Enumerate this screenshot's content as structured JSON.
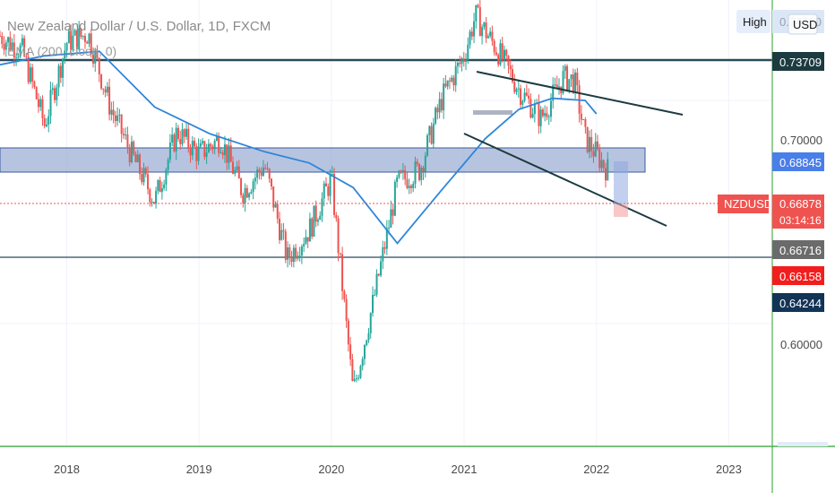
{
  "header": {
    "title": "New Zealand Dollar / U.S. Dollar, 1D, FXCM",
    "indicator": "EMA (200, close, 0)",
    "high_button": "High",
    "currency_button": "USD",
    "high_value": "0.74630"
  },
  "colors": {
    "up": "#26a69a",
    "down": "#ef5350",
    "ema": "#2f86d8",
    "trendline": "#1c3b40",
    "level": "#2b4a5a",
    "zone": "#7b93c7",
    "current_price": "#ef5350",
    "price_axis_sep": "#4caf50"
  },
  "price_tags": {
    "level_top": "0.73709",
    "zone": "0.68845",
    "symbol": "NZDUSD",
    "current": "0.66878",
    "countdown": "03:14:16",
    "level_mid": "0.66716",
    "red": "0.66158",
    "navy": "0.64244"
  },
  "chart_data": {
    "type": "candlestick",
    "title": "New Zealand Dollar / U.S. Dollar, 1D, FXCM",
    "symbol": "NZDUSD",
    "x_ticks": [
      "2018",
      "2019",
      "2020",
      "2021",
      "2022",
      "2023"
    ],
    "y_ticks": [
      "0.70000",
      "0.60000"
    ],
    "y_range": [
      0.545,
      0.745
    ],
    "x_range": [
      "2017-07-01",
      "2023-05-01"
    ],
    "current_price": 0.66878,
    "series": [
      {
        "name": "NZDUSD",
        "points": [
          [
            "2017-07",
            0.729
          ],
          [
            "2017-09",
            0.722
          ],
          [
            "2017-11",
            0.689
          ],
          [
            "2018-01",
            0.726
          ],
          [
            "2018-03",
            0.73
          ],
          [
            "2018-05",
            0.697
          ],
          [
            "2018-07",
            0.675
          ],
          [
            "2018-09",
            0.655
          ],
          [
            "2018-11",
            0.686
          ],
          [
            "2019-01",
            0.676
          ],
          [
            "2019-03",
            0.683
          ],
          [
            "2019-05",
            0.659
          ],
          [
            "2019-07",
            0.671
          ],
          [
            "2019-09",
            0.629
          ],
          [
            "2019-11",
            0.642
          ],
          [
            "2020-01",
            0.665
          ],
          [
            "2020-03",
            0.569
          ],
          [
            "2020-05",
            0.614
          ],
          [
            "2020-07",
            0.663
          ],
          [
            "2020-09",
            0.669
          ],
          [
            "2020-11",
            0.701
          ],
          [
            "2021-01",
            0.72
          ],
          [
            "2021-02",
            0.738
          ],
          [
            "2021-04",
            0.723
          ],
          [
            "2021-06",
            0.705
          ],
          [
            "2021-08",
            0.692
          ],
          [
            "2021-10",
            0.71
          ],
          [
            "2021-11",
            0.709
          ],
          [
            "2021-12",
            0.683
          ],
          [
            "2022-01",
            0.676
          ],
          [
            "2022-02",
            0.66878
          ]
        ]
      },
      {
        "name": "EMA 200",
        "points": [
          [
            "2017-07",
            0.716
          ],
          [
            "2017-11",
            0.72
          ],
          [
            "2018-04",
            0.722
          ],
          [
            "2018-09",
            0.697
          ],
          [
            "2019-02",
            0.685
          ],
          [
            "2019-07",
            0.677
          ],
          [
            "2019-11",
            0.672
          ],
          [
            "2020-03",
            0.661
          ],
          [
            "2020-07",
            0.636
          ],
          [
            "2020-11",
            0.66
          ],
          [
            "2021-03",
            0.683
          ],
          [
            "2021-06",
            0.696
          ],
          [
            "2021-09",
            0.701
          ],
          [
            "2021-12",
            0.7
          ],
          [
            "2022-01",
            0.694
          ]
        ]
      }
    ],
    "horizontal_levels": [
      0.73709,
      0.66716
    ],
    "zone": [
      0.684,
      0.692
    ],
    "annotations": [
      "descending channel upper trendline",
      "descending channel lower trendline"
    ]
  }
}
